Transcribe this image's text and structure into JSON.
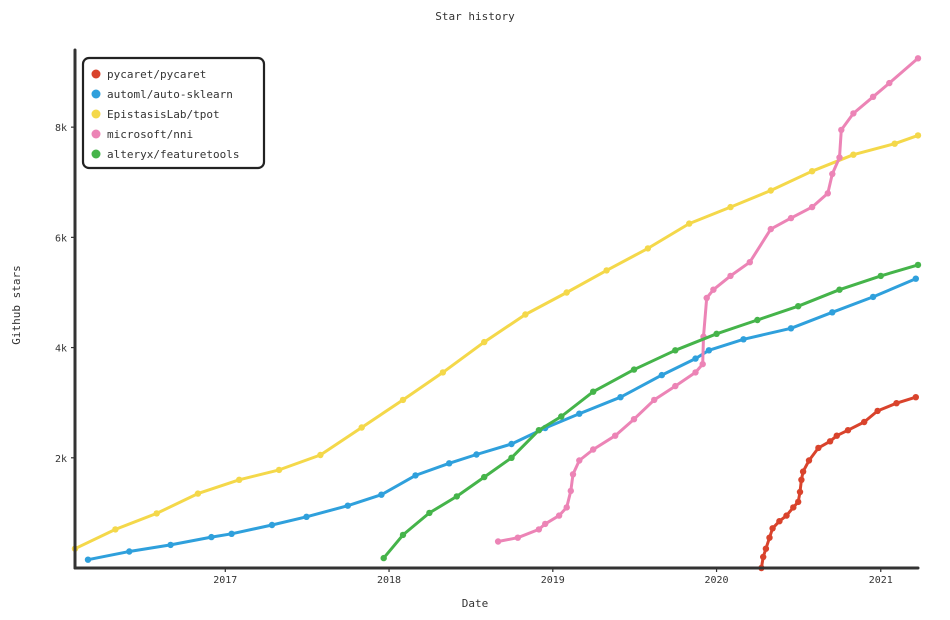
{
  "chart_data": {
    "type": "line",
    "title": "Star history",
    "xlabel": "Date",
    "ylabel": "Github stars",
    "x_range": [
      "2016-02-01",
      "2021-03-25"
    ],
    "ylim": [
      0,
      9400
    ],
    "x_ticks": [
      {
        "date": "2017-01-01",
        "label": "2017"
      },
      {
        "date": "2018-01-01",
        "label": "2018"
      },
      {
        "date": "2019-01-01",
        "label": "2019"
      },
      {
        "date": "2020-01-01",
        "label": "2020"
      },
      {
        "date": "2021-01-01",
        "label": "2021"
      }
    ],
    "y_ticks": [
      {
        "value": 2000,
        "label": "2k"
      },
      {
        "value": 4000,
        "label": "4k"
      },
      {
        "value": 6000,
        "label": "6k"
      },
      {
        "value": 8000,
        "label": "8k"
      }
    ],
    "legend_position": "top-left",
    "series": [
      {
        "name": "pycaret/pycaret",
        "color": "#d9432c",
        "points": [
          [
            "2020-04-10",
            0
          ],
          [
            "2020-04-14",
            200
          ],
          [
            "2020-04-20",
            350
          ],
          [
            "2020-04-28",
            550
          ],
          [
            "2020-05-05",
            720
          ],
          [
            "2020-05-20",
            850
          ],
          [
            "2020-06-05",
            950
          ],
          [
            "2020-06-20",
            1100
          ],
          [
            "2020-07-01",
            1200
          ],
          [
            "2020-07-05",
            1380
          ],
          [
            "2020-07-08",
            1600
          ],
          [
            "2020-07-12",
            1750
          ],
          [
            "2020-07-25",
            1950
          ],
          [
            "2020-08-15",
            2180
          ],
          [
            "2020-09-10",
            2300
          ],
          [
            "2020-09-25",
            2400
          ],
          [
            "2020-10-20",
            2500
          ],
          [
            "2020-11-25",
            2650
          ],
          [
            "2020-12-25",
            2850
          ],
          [
            "2021-02-05",
            2990
          ],
          [
            "2021-03-20",
            3100
          ]
        ]
      },
      {
        "name": "automl/auto-sklearn",
        "color": "#2fa0dc",
        "points": [
          [
            "2016-03-01",
            150
          ],
          [
            "2016-06-01",
            300
          ],
          [
            "2016-09-01",
            420
          ],
          [
            "2016-12-01",
            560
          ],
          [
            "2017-01-15",
            620
          ],
          [
            "2017-04-15",
            780
          ],
          [
            "2017-07-01",
            930
          ],
          [
            "2017-10-01",
            1130
          ],
          [
            "2017-12-15",
            1330
          ],
          [
            "2018-03-01",
            1680
          ],
          [
            "2018-05-15",
            1900
          ],
          [
            "2018-07-15",
            2060
          ],
          [
            "2018-10-01",
            2250
          ],
          [
            "2018-12-15",
            2540
          ],
          [
            "2019-03-01",
            2800
          ],
          [
            "2019-06-01",
            3100
          ],
          [
            "2019-09-01",
            3500
          ],
          [
            "2019-11-15",
            3800
          ],
          [
            "2019-12-15",
            3950
          ],
          [
            "2020-03-01",
            4150
          ],
          [
            "2020-06-15",
            4350
          ],
          [
            "2020-09-15",
            4640
          ],
          [
            "2020-12-15",
            4920
          ],
          [
            "2021-03-20",
            5250
          ]
        ]
      },
      {
        "name": "EpistasisLab/tpot",
        "color": "#f4d84a",
        "points": [
          [
            "2016-02-01",
            350
          ],
          [
            "2016-05-01",
            700
          ],
          [
            "2016-08-01",
            990
          ],
          [
            "2016-11-01",
            1350
          ],
          [
            "2017-02-01",
            1600
          ],
          [
            "2017-05-01",
            1780
          ],
          [
            "2017-08-01",
            2050
          ],
          [
            "2017-11-01",
            2550
          ],
          [
            "2018-02-01",
            3050
          ],
          [
            "2018-05-01",
            3550
          ],
          [
            "2018-08-01",
            4100
          ],
          [
            "2018-11-01",
            4600
          ],
          [
            "2019-02-01",
            5000
          ],
          [
            "2019-05-01",
            5400
          ],
          [
            "2019-08-01",
            5800
          ],
          [
            "2019-11-01",
            6250
          ],
          [
            "2020-02-01",
            6550
          ],
          [
            "2020-05-01",
            6850
          ],
          [
            "2020-08-01",
            7200
          ],
          [
            "2020-11-01",
            7500
          ],
          [
            "2021-02-01",
            7700
          ],
          [
            "2021-03-25",
            7850
          ]
        ]
      },
      {
        "name": "microsoft/nni",
        "color": "#ec84b6",
        "points": [
          [
            "2018-09-01",
            480
          ],
          [
            "2018-10-15",
            550
          ],
          [
            "2018-12-01",
            700
          ],
          [
            "2018-12-15",
            800
          ],
          [
            "2019-01-15",
            950
          ],
          [
            "2019-02-01",
            1100
          ],
          [
            "2019-02-10",
            1400
          ],
          [
            "2019-02-15",
            1700
          ],
          [
            "2019-03-01",
            1950
          ],
          [
            "2019-04-01",
            2150
          ],
          [
            "2019-05-20",
            2400
          ],
          [
            "2019-07-01",
            2700
          ],
          [
            "2019-08-15",
            3050
          ],
          [
            "2019-10-01",
            3300
          ],
          [
            "2019-11-15",
            3550
          ],
          [
            "2019-12-01",
            3700
          ],
          [
            "2019-12-03",
            4200
          ],
          [
            "2019-12-10",
            4900
          ],
          [
            "2019-12-25",
            5050
          ],
          [
            "2020-02-01",
            5300
          ],
          [
            "2020-03-15",
            5550
          ],
          [
            "2020-05-01",
            6150
          ],
          [
            "2020-06-15",
            6350
          ],
          [
            "2020-08-01",
            6550
          ],
          [
            "2020-09-05",
            6800
          ],
          [
            "2020-09-15",
            7150
          ],
          [
            "2020-10-01",
            7450
          ],
          [
            "2020-10-05",
            7950
          ],
          [
            "2020-11-01",
            8250
          ],
          [
            "2020-12-15",
            8550
          ],
          [
            "2021-01-20",
            8800
          ],
          [
            "2021-03-25",
            9250
          ]
        ]
      },
      {
        "name": "alteryx/featuretools",
        "color": "#45b44a",
        "points": [
          [
            "2017-12-20",
            180
          ],
          [
            "2018-02-01",
            600
          ],
          [
            "2018-04-01",
            1000
          ],
          [
            "2018-06-01",
            1300
          ],
          [
            "2018-08-01",
            1650
          ],
          [
            "2018-10-01",
            2000
          ],
          [
            "2018-12-01",
            2500
          ],
          [
            "2019-01-20",
            2750
          ],
          [
            "2019-04-01",
            3200
          ],
          [
            "2019-07-01",
            3600
          ],
          [
            "2019-10-01",
            3950
          ],
          [
            "2020-01-01",
            4250
          ],
          [
            "2020-04-01",
            4500
          ],
          [
            "2020-07-01",
            4750
          ],
          [
            "2020-10-01",
            5050
          ],
          [
            "2021-01-01",
            5300
          ],
          [
            "2021-03-25",
            5500
          ]
        ]
      }
    ]
  }
}
